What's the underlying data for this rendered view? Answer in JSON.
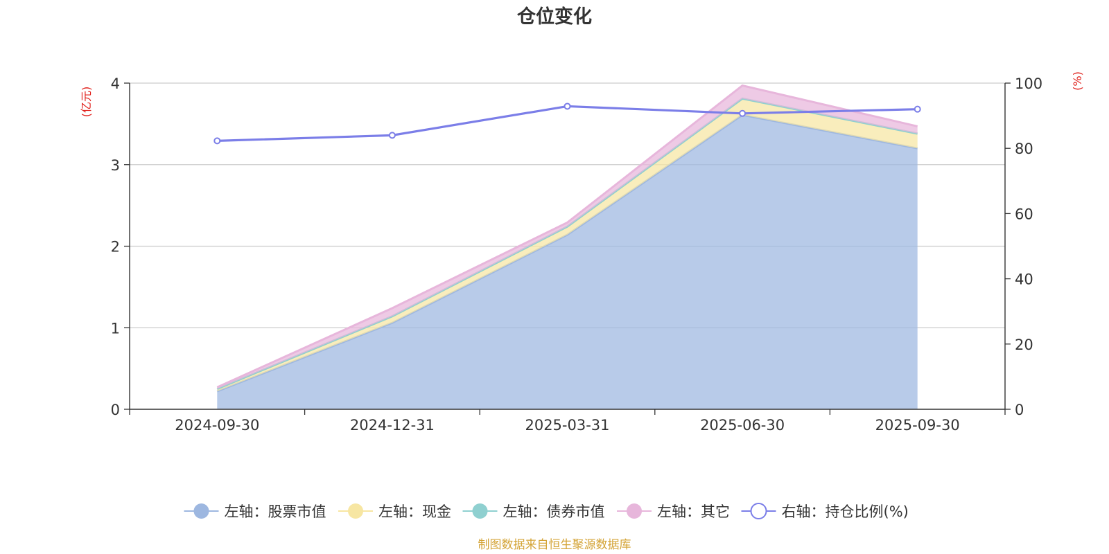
{
  "chart_data": {
    "type": "area",
    "title": "仓位变化",
    "left_axis_unit": "(亿元)",
    "right_axis_unit": "(%)",
    "categories": [
      "2024-09-30",
      "2024-12-31",
      "2025-03-31",
      "2025-06-30",
      "2025-09-30"
    ],
    "left_axis": {
      "min": 0,
      "max": 4,
      "ticks": [
        "0",
        "1",
        "2",
        "3",
        "4"
      ]
    },
    "right_axis": {
      "min": 0,
      "max": 100,
      "ticks": [
        "0",
        "20",
        "40",
        "60",
        "80",
        "100"
      ]
    },
    "stacked_series": [
      {
        "name": "左轴：股票市值",
        "axis": "left",
        "color": "#9db7e0",
        "values": [
          0.22,
          1.06,
          2.14,
          3.61,
          3.2
        ]
      },
      {
        "name": "左轴：现金",
        "axis": "left",
        "color": "#f7e6a2",
        "values": [
          0.03,
          0.08,
          0.1,
          0.2,
          0.18
        ]
      },
      {
        "name": "左轴：债券市值",
        "axis": "left",
        "color": "#8fd0d0",
        "values": [
          0,
          0,
          0,
          0,
          0
        ]
      },
      {
        "name": "左轴：其它",
        "axis": "left",
        "color": "#e7b6db",
        "values": [
          0.02,
          0.1,
          0.05,
          0.16,
          0.09
        ]
      }
    ],
    "line_series": {
      "name": "右轴：持仓比例(%)",
      "axis": "right",
      "color": "#7b7ee8",
      "values": [
        82.3,
        84.0,
        92.9,
        90.7,
        92.0
      ]
    },
    "grid": true,
    "legend_position": "bottom"
  },
  "footer": {
    "source": "制图数据来自恒生聚源数据库"
  },
  "colors": {
    "title": "#333333",
    "axis_unit": "#e0201b",
    "axis": "#333333",
    "grid": "#cccccc",
    "source": "#d4a437"
  }
}
